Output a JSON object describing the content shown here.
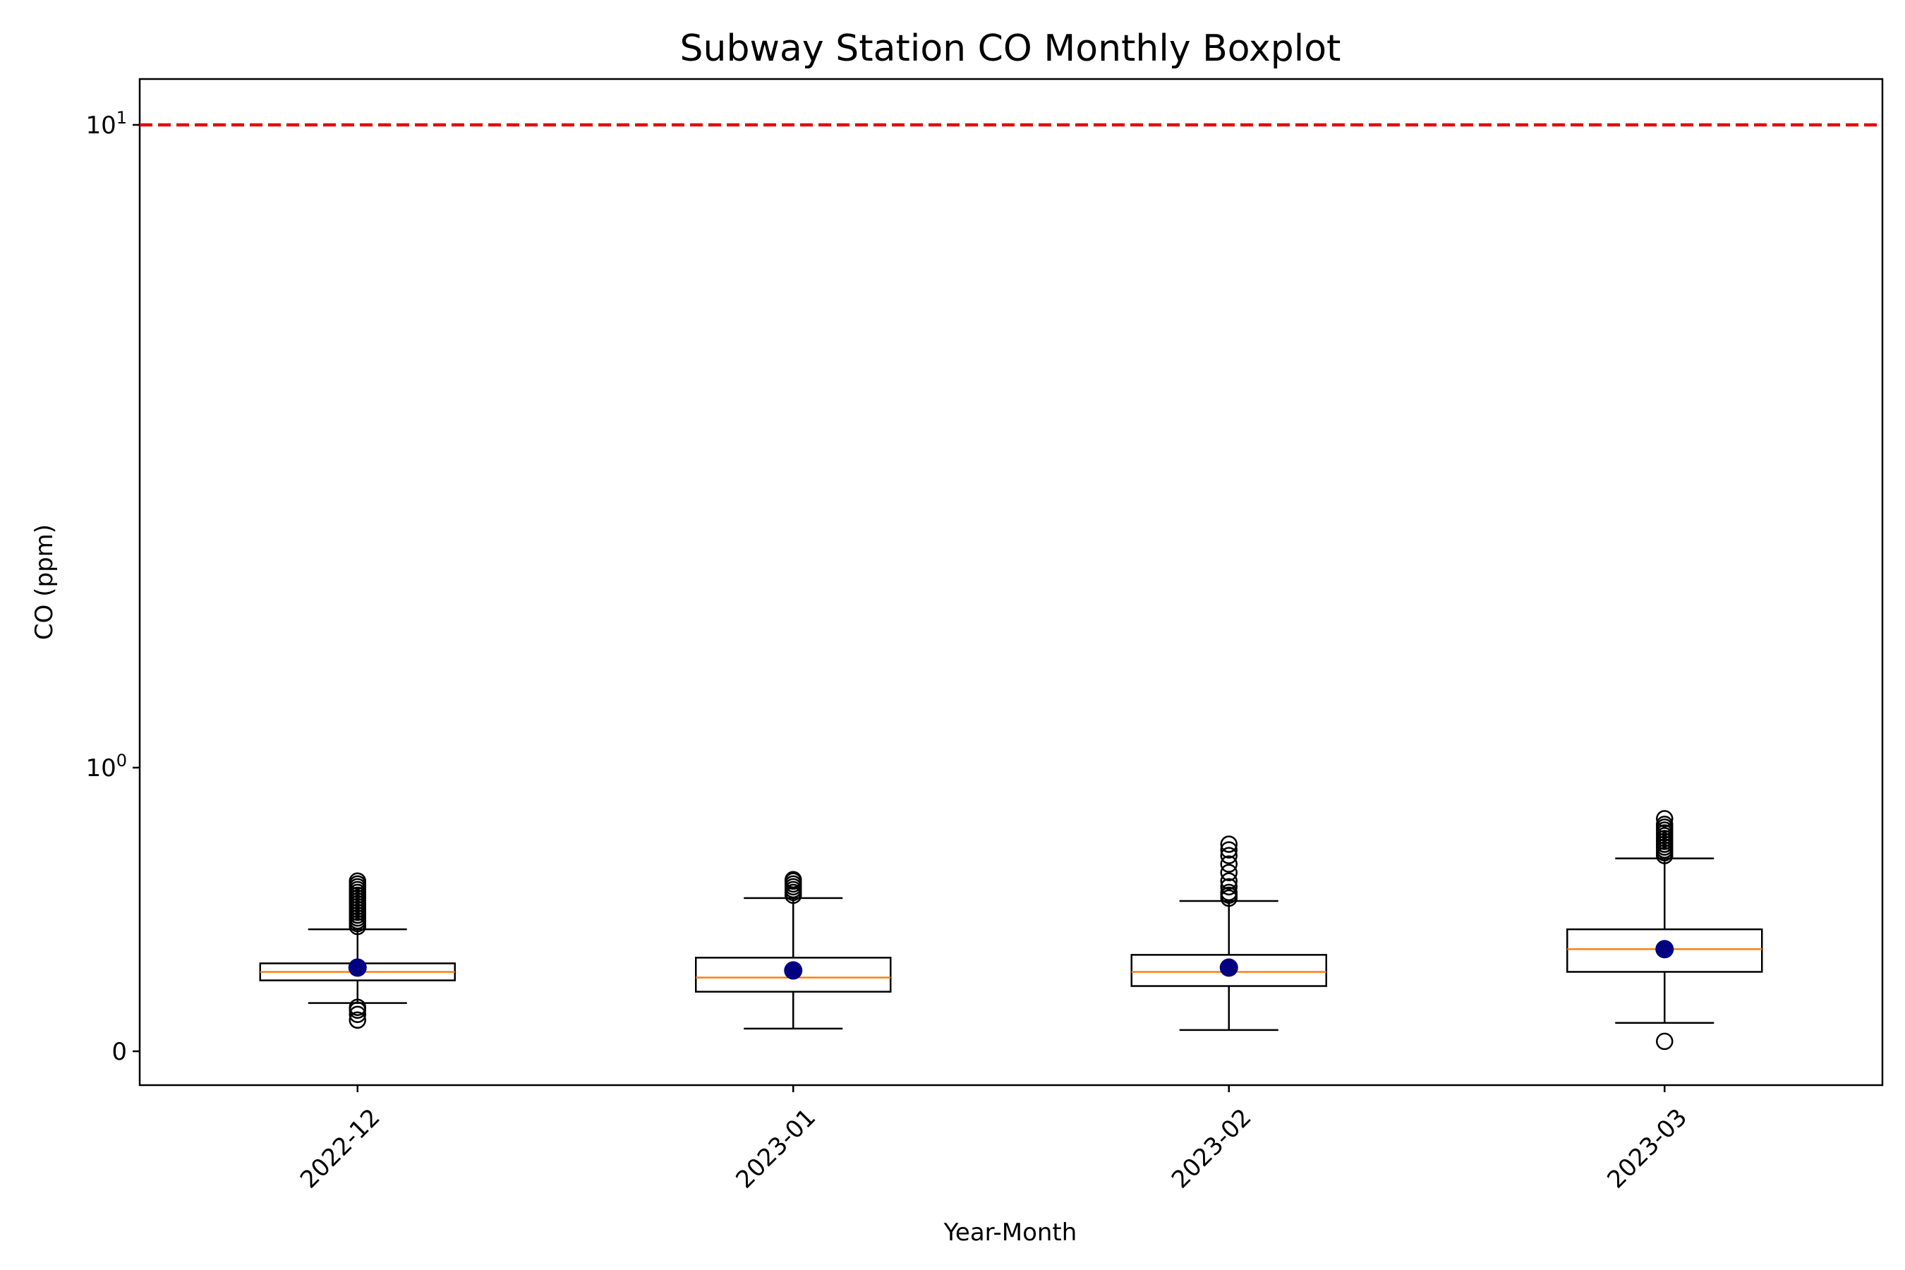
{
  "chart_data": {
    "type": "boxplot",
    "title": "Subway Station CO Monthly Boxplot",
    "xlabel": "Year-Month",
    "ylabel": "CO (ppm)",
    "yscale": "symlog",
    "ytick_labels": [
      {
        "value": 0,
        "base": "0",
        "exp": ""
      },
      {
        "value": 1,
        "base": "10",
        "exp": "0"
      },
      {
        "value": 10,
        "base": "10",
        "exp": "1"
      }
    ],
    "ylim": [
      -0.07,
      12.5
    ],
    "categories": [
      "2022-12",
      "2023-01",
      "2023-02",
      "2023-03"
    ],
    "boxes": [
      {
        "whislo": 0.17,
        "q1": 0.25,
        "med": 0.28,
        "q3": 0.31,
        "whishi": 0.43,
        "mean": 0.295,
        "fliers": [
          0.11,
          0.13,
          0.145,
          0.155,
          0.44,
          0.45,
          0.46,
          0.47,
          0.48,
          0.49,
          0.5,
          0.51,
          0.52,
          0.53,
          0.54,
          0.55,
          0.56,
          0.57,
          0.58,
          0.59,
          0.6
        ]
      },
      {
        "whislo": 0.08,
        "q1": 0.21,
        "med": 0.26,
        "q3": 0.33,
        "whishi": 0.54,
        "mean": 0.285,
        "fliers": [
          0.55,
          0.56,
          0.57,
          0.58,
          0.59,
          0.6,
          0.605
        ]
      },
      {
        "whislo": 0.075,
        "q1": 0.23,
        "med": 0.28,
        "q3": 0.34,
        "whishi": 0.53,
        "mean": 0.295,
        "fliers": [
          0.54,
          0.55,
          0.56,
          0.58,
          0.6,
          0.63,
          0.66,
          0.69,
          0.71,
          0.73
        ]
      },
      {
        "whislo": 0.1,
        "q1": 0.28,
        "med": 0.36,
        "q3": 0.43,
        "whishi": 0.68,
        "mean": 0.36,
        "fliers": [
          0.035,
          0.69,
          0.7,
          0.71,
          0.72,
          0.73,
          0.74,
          0.75,
          0.76,
          0.77,
          0.78,
          0.79,
          0.8,
          0.82
        ]
      }
    ],
    "reference_line": {
      "value": 10,
      "color": "#e8000b",
      "style": "dashed"
    },
    "colors": {
      "box": "#000000",
      "median": "#ff7f0e",
      "mean": "#000080",
      "flier": "#000000"
    },
    "grid": false
  }
}
